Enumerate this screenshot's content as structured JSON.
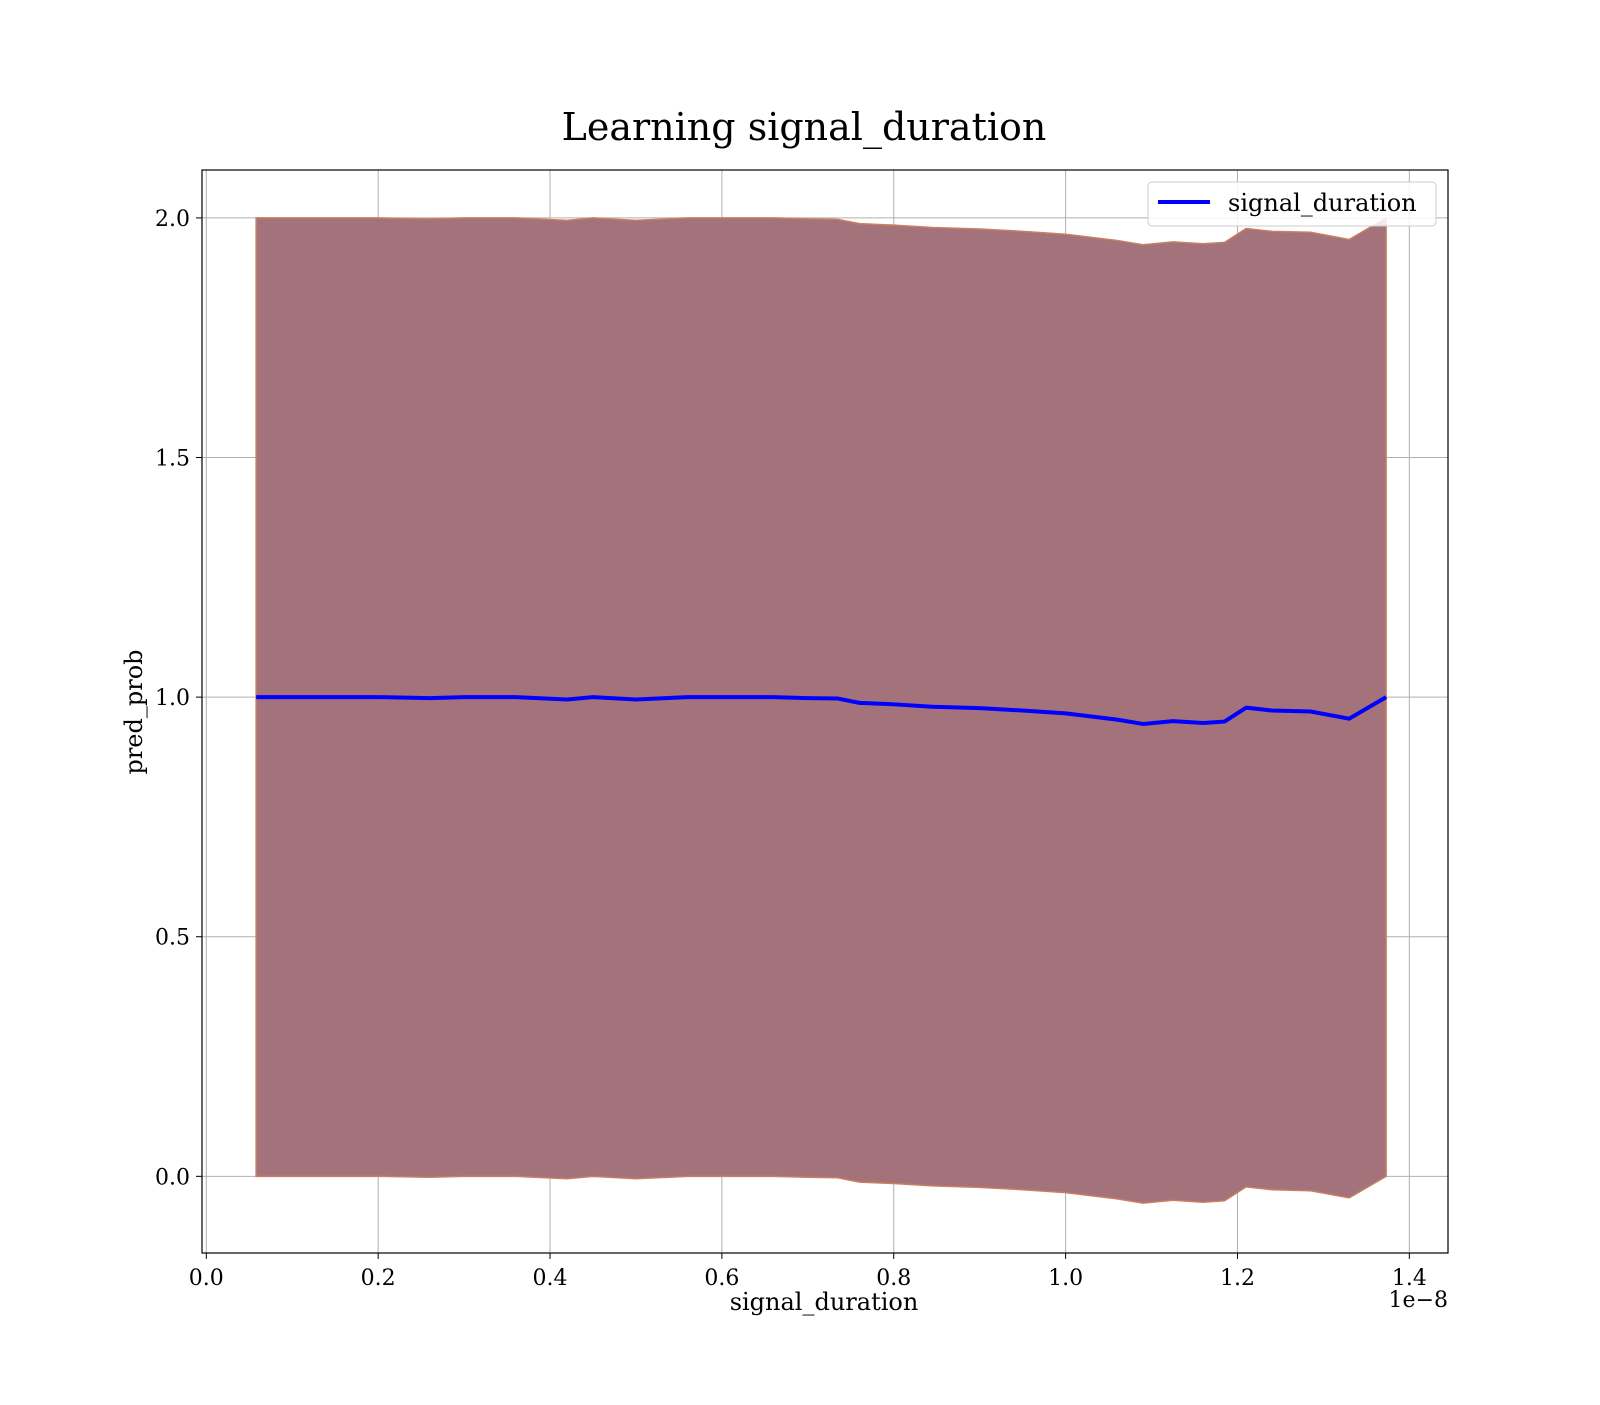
{
  "chart_data": {
    "type": "line",
    "title": "Learning signal_duration",
    "xlabel": "signal_duration",
    "ylabel": "pred_prob",
    "x_offset_label": "1e−8",
    "x_scale_factor": 1e-08,
    "xlim": [
      -5e-11,
      1.445e-08
    ],
    "ylim": [
      -0.16,
      2.1
    ],
    "xticks": [
      0.0,
      2e-09,
      4e-09,
      6e-09,
      8e-09,
      1e-08,
      1.2e-08,
      1.4e-08
    ],
    "xtick_labels": [
      "0.0",
      "0.2",
      "0.4",
      "0.6",
      "0.8",
      "1.0",
      "1.2",
      "1.4"
    ],
    "yticks": [
      0.0,
      0.5,
      1.0,
      1.5,
      2.0
    ],
    "ytick_labels": [
      "0.0",
      "0.5",
      "1.0",
      "1.5",
      "2.0"
    ],
    "grid": true,
    "legend_position": "top-right",
    "series": [
      {
        "name": "signal_duration",
        "color": "#0000ff",
        "x": [
          5.8e-10,
          1e-09,
          1.5e-09,
          2e-09,
          2.6e-09,
          3e-09,
          3.6e-09,
          4.2e-09,
          4.5e-09,
          5e-09,
          5.6e-09,
          6e-09,
          6.6e-09,
          7e-09,
          7.35e-09,
          7.6e-09,
          8e-09,
          8.45e-09,
          9e-09,
          9.5e-09,
          1e-08,
          1.06e-08,
          1.09e-08,
          1.125e-08,
          1.16e-08,
          1.185e-08,
          1.21e-08,
          1.24e-08,
          1.285e-08,
          1.33e-08,
          1.373e-08
        ],
        "values": [
          1.0,
          1.0,
          1.0,
          1.0,
          0.998,
          1.0,
          1.0,
          0.995,
          1.0,
          0.995,
          1.0,
          1.0,
          1.0,
          0.998,
          0.997,
          0.988,
          0.985,
          0.98,
          0.977,
          0.972,
          0.966,
          0.953,
          0.944,
          0.95,
          0.946,
          0.949,
          0.978,
          0.972,
          0.97,
          0.955,
          1.0
        ]
      }
    ],
    "band": {
      "color": "#a3727b",
      "edge_color": "#c87f62",
      "upper": [
        2.0,
        2.0,
        2.0,
        2.0,
        1.998,
        2.0,
        2.0,
        1.995,
        2.0,
        1.995,
        2.0,
        2.0,
        2.0,
        1.998,
        1.997,
        1.988,
        1.985,
        1.98,
        1.977,
        1.972,
        1.966,
        1.953,
        1.944,
        1.95,
        1.946,
        1.949,
        1.978,
        1.972,
        1.97,
        1.955,
        2.0
      ],
      "lower": [
        0.0,
        0.0,
        0.0,
        0.0,
        -0.002,
        0.0,
        0.0,
        -0.005,
        0.0,
        -0.005,
        0.0,
        0.0,
        0.0,
        -0.002,
        -0.003,
        -0.012,
        -0.015,
        -0.02,
        -0.023,
        -0.028,
        -0.034,
        -0.047,
        -0.056,
        -0.05,
        -0.054,
        -0.051,
        -0.022,
        -0.028,
        -0.03,
        -0.045,
        0.0
      ]
    }
  }
}
